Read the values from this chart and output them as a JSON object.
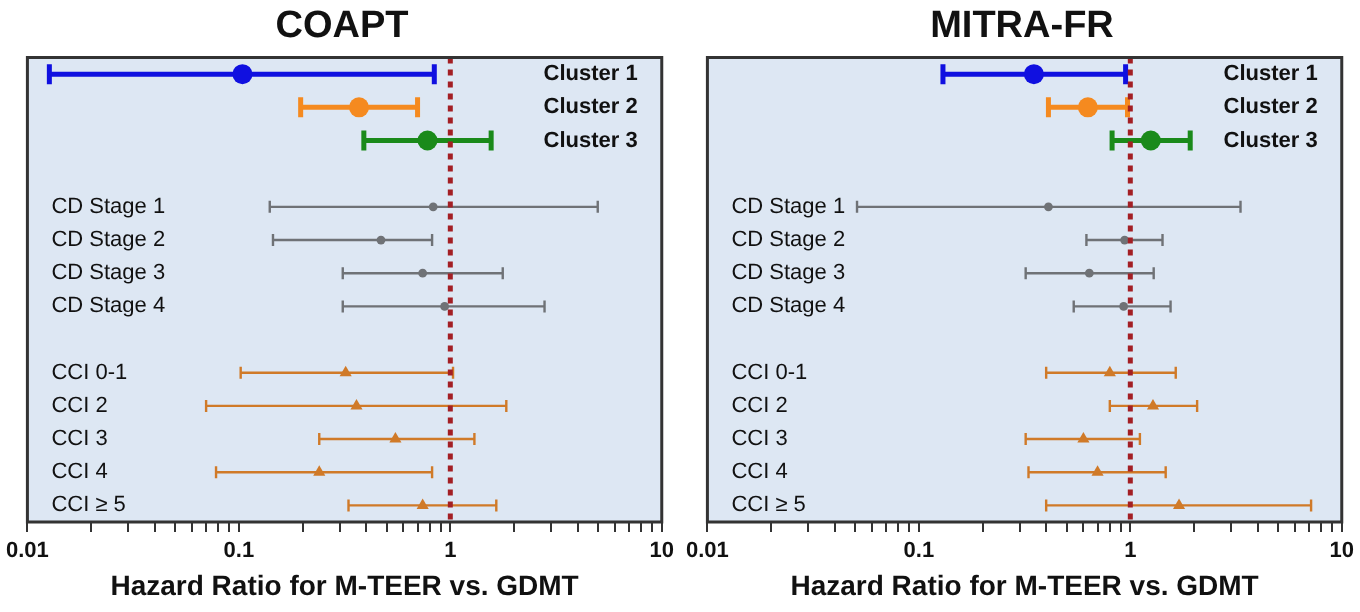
{
  "chart_data": [
    {
      "type": "scatter",
      "title": "COAPT",
      "xlabel": "Hazard Ratio for M-TEER vs. GDMT",
      "orientation": "horizontal",
      "log": "x",
      "xlim": [
        0.01,
        10
      ],
      "xticks": [
        0.01,
        {
          "value": 0.02,
          "label": null
        },
        {
          "value": 0.03,
          "label": null
        },
        {
          "value": 0.04,
          "label": null
        },
        {
          "value": 0.05,
          "label": null
        },
        {
          "value": 0.06,
          "label": null
        },
        {
          "value": 0.07,
          "label": null
        },
        {
          "value": 0.08,
          "label": null
        },
        {
          "value": 0.09,
          "label": null
        },
        0.1,
        {
          "value": 0.2,
          "label": null
        },
        {
          "value": 0.3,
          "label": null
        },
        {
          "value": 0.4,
          "label": null
        },
        {
          "value": 0.5,
          "label": null
        },
        {
          "value": 0.6,
          "label": null
        },
        {
          "value": 0.7,
          "label": null
        },
        {
          "value": 0.8,
          "label": null
        },
        {
          "value": 0.9,
          "label": null
        },
        1,
        {
          "value": 2,
          "label": null
        },
        {
          "value": 3,
          "label": null
        },
        {
          "value": 4,
          "label": null
        },
        {
          "value": 5,
          "label": null
        },
        {
          "value": 6,
          "label": null
        },
        {
          "value": 7,
          "label": null
        },
        {
          "value": 8,
          "label": null
        },
        {
          "value": 9,
          "label": null
        },
        10
      ],
      "categories": [
        "Cluster 1",
        "Cluster 2",
        "Cluster 3",
        null,
        "CD Stage 1",
        "CD Stage 2",
        "CD Stage 3",
        "CD Stage 4",
        null,
        "CCI 0-1",
        "CCI 2",
        "CCI 3",
        "CCI 4",
        "CCI ≥ 5"
      ],
      "grid": false,
      "legend": false,
      "ref_lines": [
        {
          "axis": "x",
          "value": 1,
          "color": "#a31f24",
          "line_style": "dotted"
        }
      ],
      "series": [
        {
          "color": "#1010e0",
          "marker": "circle",
          "values": [
            0.104,
            null,
            null,
            null,
            null,
            null,
            null,
            null,
            null,
            null,
            null,
            null,
            null,
            null
          ],
          "errors": [
            [
              0.0127,
              0.84
            ],
            null,
            null,
            null,
            null,
            null,
            null,
            null,
            null,
            null,
            null,
            null,
            null,
            null
          ]
        },
        {
          "color": "#f58a1f",
          "marker": "circle",
          "values": [
            null,
            0.37,
            null,
            null,
            null,
            null,
            null,
            null,
            null,
            null,
            null,
            null,
            null,
            null
          ],
          "errors": [
            null,
            [
              0.196,
              0.7
            ],
            null,
            null,
            null,
            null,
            null,
            null,
            null,
            null,
            null,
            null,
            null,
            null
          ]
        },
        {
          "color": "#1a8a1a",
          "marker": "circle",
          "values": [
            null,
            null,
            0.78,
            null,
            null,
            null,
            null,
            null,
            null,
            null,
            null,
            null,
            null,
            null
          ],
          "errors": [
            null,
            null,
            [
              0.39,
              1.56
            ],
            null,
            null,
            null,
            null,
            null,
            null,
            null,
            null,
            null,
            null,
            null
          ]
        },
        {
          "color": "#6f7276",
          "marker": "circle",
          "values": [
            null,
            null,
            null,
            null,
            0.83,
            0.47,
            0.74,
            0.94,
            null,
            null,
            null,
            null,
            null,
            null
          ],
          "errors": [
            null,
            null,
            null,
            null,
            [
              0.14,
              4.98
            ],
            [
              0.145,
              0.82
            ],
            [
              0.31,
              1.77
            ],
            [
              0.31,
              2.79
            ],
            null,
            null,
            null,
            null,
            null,
            null
          ]
        },
        {
          "color": "#d07a28",
          "marker": "triangle",
          "values": [
            null,
            null,
            null,
            null,
            null,
            null,
            null,
            null,
            null,
            0.32,
            0.36,
            0.55,
            0.24,
            0.74
          ],
          "errors": [
            null,
            null,
            null,
            null,
            null,
            null,
            null,
            null,
            null,
            [
              0.102,
              1.03
            ],
            [
              0.07,
              1.84
            ],
            [
              0.24,
              1.3
            ],
            [
              0.078,
              0.82
            ],
            [
              0.33,
              1.65
            ]
          ]
        }
      ]
    },
    {
      "type": "scatter",
      "title": "MITRA-FR",
      "xlabel": "Hazard Ratio for M-TEER vs. GDMT",
      "orientation": "horizontal",
      "log": "x",
      "xlim": [
        0.01,
        10
      ],
      "xticks": [
        0.01,
        {
          "value": 0.02,
          "label": null
        },
        {
          "value": 0.03,
          "label": null
        },
        {
          "value": 0.04,
          "label": null
        },
        {
          "value": 0.05,
          "label": null
        },
        {
          "value": 0.06,
          "label": null
        },
        {
          "value": 0.07,
          "label": null
        },
        {
          "value": 0.08,
          "label": null
        },
        {
          "value": 0.09,
          "label": null
        },
        0.1,
        {
          "value": 0.2,
          "label": null
        },
        {
          "value": 0.3,
          "label": null
        },
        {
          "value": 0.4,
          "label": null
        },
        {
          "value": 0.5,
          "label": null
        },
        {
          "value": 0.6,
          "label": null
        },
        {
          "value": 0.7,
          "label": null
        },
        {
          "value": 0.8,
          "label": null
        },
        {
          "value": 0.9,
          "label": null
        },
        1,
        {
          "value": 2,
          "label": null
        },
        {
          "value": 3,
          "label": null
        },
        {
          "value": 4,
          "label": null
        },
        {
          "value": 5,
          "label": null
        },
        {
          "value": 6,
          "label": null
        },
        {
          "value": 7,
          "label": null
        },
        {
          "value": 8,
          "label": null
        },
        {
          "value": 9,
          "label": null
        },
        10
      ],
      "categories": [
        "Cluster 1",
        "Cluster 2",
        "Cluster 3",
        null,
        "CD Stage 1",
        "CD Stage 2",
        "CD Stage 3",
        "CD Stage 4",
        null,
        "CCI 0-1",
        "CCI 2",
        "CCI 3",
        "CCI 4",
        "CCI ≥ 5"
      ],
      "grid": false,
      "legend": false,
      "ref_lines": [
        {
          "axis": "x",
          "value": 1,
          "color": "#a31f24",
          "line_style": "dotted"
        }
      ],
      "series": [
        {
          "color": "#1010e0",
          "marker": "circle",
          "values": [
            0.35,
            null,
            null,
            null,
            null,
            null,
            null,
            null,
            null,
            null,
            null,
            null,
            null,
            null
          ],
          "errors": [
            [
              0.13,
              0.95
            ],
            null,
            null,
            null,
            null,
            null,
            null,
            null,
            null,
            null,
            null,
            null,
            null,
            null
          ]
        },
        {
          "color": "#f58a1f",
          "marker": "circle",
          "values": [
            null,
            0.63,
            null,
            null,
            null,
            null,
            null,
            null,
            null,
            null,
            null,
            null,
            null,
            null
          ],
          "errors": [
            null,
            [
              0.41,
              0.97
            ],
            null,
            null,
            null,
            null,
            null,
            null,
            null,
            null,
            null,
            null,
            null,
            null
          ]
        },
        {
          "color": "#1a8a1a",
          "marker": "circle",
          "values": [
            null,
            null,
            1.25,
            null,
            null,
            null,
            null,
            null,
            null,
            null,
            null,
            null,
            null,
            null
          ],
          "errors": [
            null,
            null,
            [
              0.82,
              1.92
            ],
            null,
            null,
            null,
            null,
            null,
            null,
            null,
            null,
            null,
            null,
            null
          ]
        },
        {
          "color": "#6f7276",
          "marker": "circle",
          "values": [
            null,
            null,
            null,
            null,
            0.41,
            0.94,
            0.64,
            0.93,
            null,
            null,
            null,
            null,
            null,
            null
          ],
          "errors": [
            null,
            null,
            null,
            null,
            [
              0.051,
              3.32
            ],
            [
              0.62,
              1.42
            ],
            [
              0.32,
              1.29
            ],
            [
              0.54,
              1.55
            ],
            null,
            null,
            null,
            null,
            null,
            null
          ]
        },
        {
          "color": "#d07a28",
          "marker": "triangle",
          "values": [
            null,
            null,
            null,
            null,
            null,
            null,
            null,
            null,
            null,
            0.8,
            1.28,
            0.6,
            0.7,
            1.7
          ],
          "errors": [
            null,
            null,
            null,
            null,
            null,
            null,
            null,
            null,
            null,
            [
              0.4,
              1.64
            ],
            [
              0.8,
              2.07
            ],
            [
              0.32,
              1.11
            ],
            [
              0.33,
              1.47
            ],
            [
              0.4,
              7.16
            ]
          ]
        }
      ]
    }
  ]
}
